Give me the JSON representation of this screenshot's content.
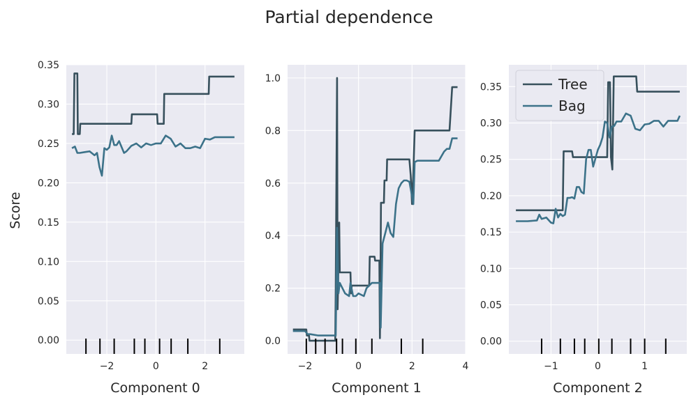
{
  "figure": {
    "title": "Partial dependence",
    "ylabel": "Score"
  },
  "colors": {
    "background": "#eaeaf2",
    "grid": "#ffffff",
    "tree": "#37505c",
    "bag": "#3c7289",
    "rug": "#000000"
  },
  "chart_data": [
    {
      "type": "line",
      "xlabel": "Component 0",
      "xlim": [
        -3.65,
        3.6
      ],
      "ylim": [
        -0.0175,
        0.35
      ],
      "xticks": [
        -2,
        0,
        2
      ],
      "yticks": [
        0.0,
        0.05,
        0.1,
        0.15,
        0.2,
        0.25,
        0.3,
        0.35
      ],
      "ytick_format": 2,
      "legend": null,
      "rug": [
        -2.85,
        -2.28,
        -1.7,
        -0.88,
        -0.45,
        0.15,
        0.62,
        1.3,
        2.6
      ],
      "series": [
        {
          "name": "Tree",
          "x": [
            -3.42,
            -3.35,
            -3.32,
            -3.2,
            -3.18,
            -3.1,
            -3.08,
            -1.0,
            -0.98,
            0.05,
            0.07,
            0.32,
            0.34,
            2.15,
            2.17,
            3.2
          ],
          "y": [
            0.262,
            0.262,
            0.339,
            0.339,
            0.262,
            0.262,
            0.275,
            0.275,
            0.287,
            0.287,
            0.275,
            0.275,
            0.313,
            0.313,
            0.335,
            0.335
          ]
        },
        {
          "name": "Bag",
          "x": [
            -3.42,
            -3.3,
            -3.2,
            -3.1,
            -2.9,
            -2.7,
            -2.5,
            -2.4,
            -2.3,
            -2.2,
            -2.1,
            -2.0,
            -1.9,
            -1.8,
            -1.7,
            -1.6,
            -1.5,
            -1.3,
            -1.2,
            -1.0,
            -0.8,
            -0.6,
            -0.4,
            -0.2,
            0.0,
            0.2,
            0.4,
            0.5,
            0.6,
            0.8,
            1.0,
            1.2,
            1.4,
            1.6,
            1.8,
            2.0,
            2.2,
            2.4,
            3.2
          ],
          "y": [
            0.244,
            0.246,
            0.238,
            0.238,
            0.239,
            0.24,
            0.235,
            0.238,
            0.22,
            0.209,
            0.244,
            0.242,
            0.245,
            0.26,
            0.248,
            0.248,
            0.253,
            0.238,
            0.24,
            0.247,
            0.25,
            0.245,
            0.25,
            0.248,
            0.25,
            0.25,
            0.26,
            0.258,
            0.256,
            0.246,
            0.25,
            0.244,
            0.244,
            0.246,
            0.244,
            0.256,
            0.255,
            0.258,
            0.258
          ]
        }
      ]
    },
    {
      "type": "line",
      "xlabel": "Component 1",
      "xlim": [
        -2.65,
        4.0
      ],
      "ylim": [
        -0.05,
        1.05
      ],
      "xticks": [
        -2,
        0,
        2,
        4
      ],
      "yticks": [
        0.0,
        0.2,
        0.4,
        0.6,
        0.8,
        1.0
      ],
      "ytick_format": 1,
      "legend": null,
      "rug": [
        -1.95,
        -1.6,
        -1.25,
        -0.82,
        -0.6,
        -0.1,
        0.5,
        1.6,
        2.4
      ],
      "series": [
        {
          "name": "Tree",
          "x": [
            -2.45,
            -1.95,
            -1.93,
            -1.85,
            -1.83,
            -0.87,
            -0.85,
            -0.8,
            -0.78,
            -0.72,
            -0.7,
            -0.65,
            -0.63,
            -0.3,
            -0.28,
            -0.25,
            -0.22,
            0.4,
            0.42,
            0.6,
            0.62,
            0.78,
            0.8,
            0.82,
            0.84,
            0.95,
            0.97,
            1.05,
            1.07,
            1.9,
            1.95,
            2.0,
            2.05,
            2.1,
            3.4,
            3.5,
            3.7
          ],
          "y": [
            0.043,
            0.043,
            0.02,
            0.02,
            0.0,
            0.0,
            0.2,
            1.0,
            0.12,
            0.45,
            0.26,
            0.26,
            0.26,
            0.26,
            0.18,
            0.21,
            0.21,
            0.21,
            0.32,
            0.32,
            0.305,
            0.305,
            0.01,
            0.23,
            0.525,
            0.525,
            0.61,
            0.61,
            0.69,
            0.69,
            0.63,
            0.52,
            0.64,
            0.8,
            0.8,
            0.965,
            0.965
          ]
        },
        {
          "name": "Bag",
          "x": [
            -2.45,
            -2.0,
            -1.9,
            -1.8,
            -1.5,
            -1.0,
            -0.85,
            -0.8,
            -0.75,
            -0.7,
            -0.65,
            -0.6,
            -0.5,
            -0.35,
            -0.3,
            -0.2,
            -0.1,
            0.0,
            0.2,
            0.3,
            0.5,
            0.6,
            0.8,
            0.83,
            0.9,
            1.0,
            1.1,
            1.2,
            1.3,
            1.4,
            1.5,
            1.6,
            1.7,
            1.8,
            1.9,
            2.0,
            2.05,
            2.1,
            2.2,
            2.4,
            2.6,
            2.8,
            3.0,
            3.2,
            3.3,
            3.4,
            3.5,
            3.7
          ],
          "y": [
            0.037,
            0.037,
            0.025,
            0.025,
            0.02,
            0.02,
            0.02,
            0.43,
            0.18,
            0.22,
            0.21,
            0.2,
            0.18,
            0.17,
            0.22,
            0.17,
            0.17,
            0.18,
            0.17,
            0.2,
            0.22,
            0.22,
            0.22,
            0.05,
            0.37,
            0.41,
            0.45,
            0.41,
            0.395,
            0.52,
            0.58,
            0.6,
            0.61,
            0.61,
            0.605,
            0.55,
            0.52,
            0.68,
            0.685,
            0.685,
            0.685,
            0.685,
            0.685,
            0.72,
            0.73,
            0.73,
            0.77,
            0.77
          ]
        }
      ]
    },
    {
      "type": "line",
      "xlabel": "Component 2",
      "xlim": [
        -1.9,
        1.9
      ],
      "ylim": [
        -0.0175,
        0.38
      ],
      "xticks": [
        -1,
        0,
        1
      ],
      "yticks": [
        0.0,
        0.05,
        0.1,
        0.15,
        0.2,
        0.25,
        0.3,
        0.35
      ],
      "ytick_format": 2,
      "legend": "top-left",
      "rug": [
        -1.2,
        -0.8,
        -0.5,
        -0.28,
        0.02,
        0.3,
        0.7,
        1.0,
        1.45
      ],
      "series": [
        {
          "name": "Tree",
          "x": [
            -1.75,
            -0.75,
            -0.73,
            -0.55,
            -0.53,
            -0.02,
            0.0,
            0.2,
            0.22,
            0.26,
            0.28,
            0.31,
            0.34,
            0.82,
            0.84,
            1.75
          ],
          "y": [
            0.18,
            0.18,
            0.261,
            0.261,
            0.253,
            0.253,
            0.253,
            0.253,
            0.356,
            0.356,
            0.253,
            0.236,
            0.364,
            0.364,
            0.343,
            0.343
          ]
        },
        {
          "name": "Bag",
          "x": [
            -1.75,
            -1.5,
            -1.3,
            -1.25,
            -1.2,
            -1.1,
            -1.0,
            -0.95,
            -0.9,
            -0.85,
            -0.8,
            -0.75,
            -0.7,
            -0.65,
            -0.6,
            -0.55,
            -0.5,
            -0.45,
            -0.4,
            -0.35,
            -0.3,
            -0.25,
            -0.2,
            -0.15,
            -0.1,
            0.0,
            0.05,
            0.1,
            0.15,
            0.2,
            0.25,
            0.3,
            0.35,
            0.4,
            0.5,
            0.6,
            0.7,
            0.8,
            0.9,
            1.0,
            1.1,
            1.2,
            1.3,
            1.4,
            1.5,
            1.7,
            1.75
          ],
          "y": [
            0.165,
            0.165,
            0.166,
            0.174,
            0.168,
            0.17,
            0.163,
            0.162,
            0.182,
            0.17,
            0.175,
            0.172,
            0.174,
            0.197,
            0.197,
            0.198,
            0.196,
            0.212,
            0.212,
            0.205,
            0.203,
            0.25,
            0.263,
            0.263,
            0.24,
            0.263,
            0.27,
            0.28,
            0.302,
            0.3,
            0.28,
            0.295,
            0.296,
            0.302,
            0.302,
            0.313,
            0.31,
            0.292,
            0.29,
            0.298,
            0.299,
            0.303,
            0.303,
            0.295,
            0.303,
            0.303,
            0.31
          ]
        }
      ]
    }
  ]
}
